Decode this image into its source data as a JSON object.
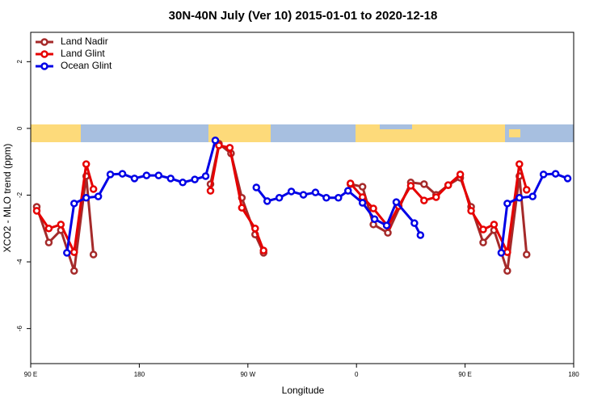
{
  "chart_data": {
    "type": "line",
    "title": "30N-40N July (Ver 10)   2015-01-01 to 2020-12-18",
    "x_label": "Longitude",
    "y_label": "XCO2 - MLO trend (ppm)",
    "xlim": [
      90,
      540
    ],
    "ylim": [
      -7.05,
      2.88
    ],
    "xticks": [
      {
        "value": 90,
        "label": "90 E"
      },
      180,
      {
        "value": 270,
        "label": "90 W"
      },
      {
        "value": 360,
        "label": "0"
      },
      {
        "value": 450,
        "label": "90 E"
      },
      {
        "value": 540,
        "label": "180"
      }
    ],
    "yticks": [
      2,
      0,
      -2,
      -4,
      -6
    ],
    "legend": "top-left",
    "series": [
      {
        "name": "Land Nadir",
        "color": "#a52a2a",
        "x": [
          95,
          105,
          115,
          126,
          136,
          142,
          null,
          239,
          246,
          256,
          265,
          276,
          283,
          null,
          355,
          365,
          374,
          386,
          405,
          416,
          426,
          436,
          446,
          455,
          465,
          474,
          485,
          495,
          501
        ],
        "values": [
          -2.35,
          -3.42,
          -3.05,
          -4.27,
          -1.43,
          -3.78,
          null,
          -1.67,
          -0.46,
          -0.75,
          -2.08,
          -3.18,
          -3.73,
          null,
          -1.67,
          -1.75,
          -2.88,
          -3.13,
          -1.62,
          -1.67,
          -1.99,
          -1.7,
          -1.48,
          -2.35,
          -3.42,
          -3.05,
          -4.27,
          -1.43,
          -3.78
        ]
      },
      {
        "name": "Land Glint",
        "color": "#e60000",
        "x": [
          95,
          105,
          115,
          126,
          136,
          142,
          null,
          239,
          246,
          255,
          265,
          276,
          283,
          null,
          355,
          365,
          374,
          386,
          395,
          405,
          416,
          426,
          436,
          446,
          455,
          465,
          474,
          485,
          495,
          501
        ],
        "values": [
          -2.47,
          -3.0,
          -2.88,
          -3.71,
          -1.07,
          -1.82,
          null,
          -1.87,
          -0.51,
          -0.58,
          -2.38,
          -3.0,
          -3.66,
          null,
          -1.65,
          -2.06,
          -2.4,
          -2.93,
          -2.33,
          -1.72,
          -2.16,
          -2.06,
          -1.7,
          -1.38,
          -2.47,
          -3.03,
          -2.88,
          -3.71,
          -1.07,
          -1.84
        ]
      },
      {
        "name": "Ocean Glint",
        "color": "#0000e6",
        "x": [
          120,
          126,
          136,
          146,
          156,
          166,
          176,
          186,
          196,
          206,
          216,
          226,
          235,
          243,
          null,
          277,
          286,
          296,
          306,
          316,
          326,
          335,
          345,
          353,
          365,
          375,
          385,
          393,
          408,
          413,
          null,
          480,
          485,
          495,
          506,
          515,
          525,
          535
        ],
        "values": [
          -3.73,
          -2.25,
          -2.08,
          -2.04,
          -1.38,
          -1.36,
          -1.5,
          -1.41,
          -1.41,
          -1.5,
          -1.62,
          -1.53,
          -1.43,
          -0.36,
          null,
          -1.77,
          -2.18,
          -2.08,
          -1.89,
          -1.99,
          -1.92,
          -2.08,
          -2.08,
          -1.87,
          -2.23,
          -2.72,
          -2.91,
          -2.21,
          -2.84,
          -3.2,
          null,
          -3.73,
          -2.25,
          -2.08,
          -2.04,
          -1.38,
          -1.36,
          -1.5
        ]
      }
    ]
  }
}
